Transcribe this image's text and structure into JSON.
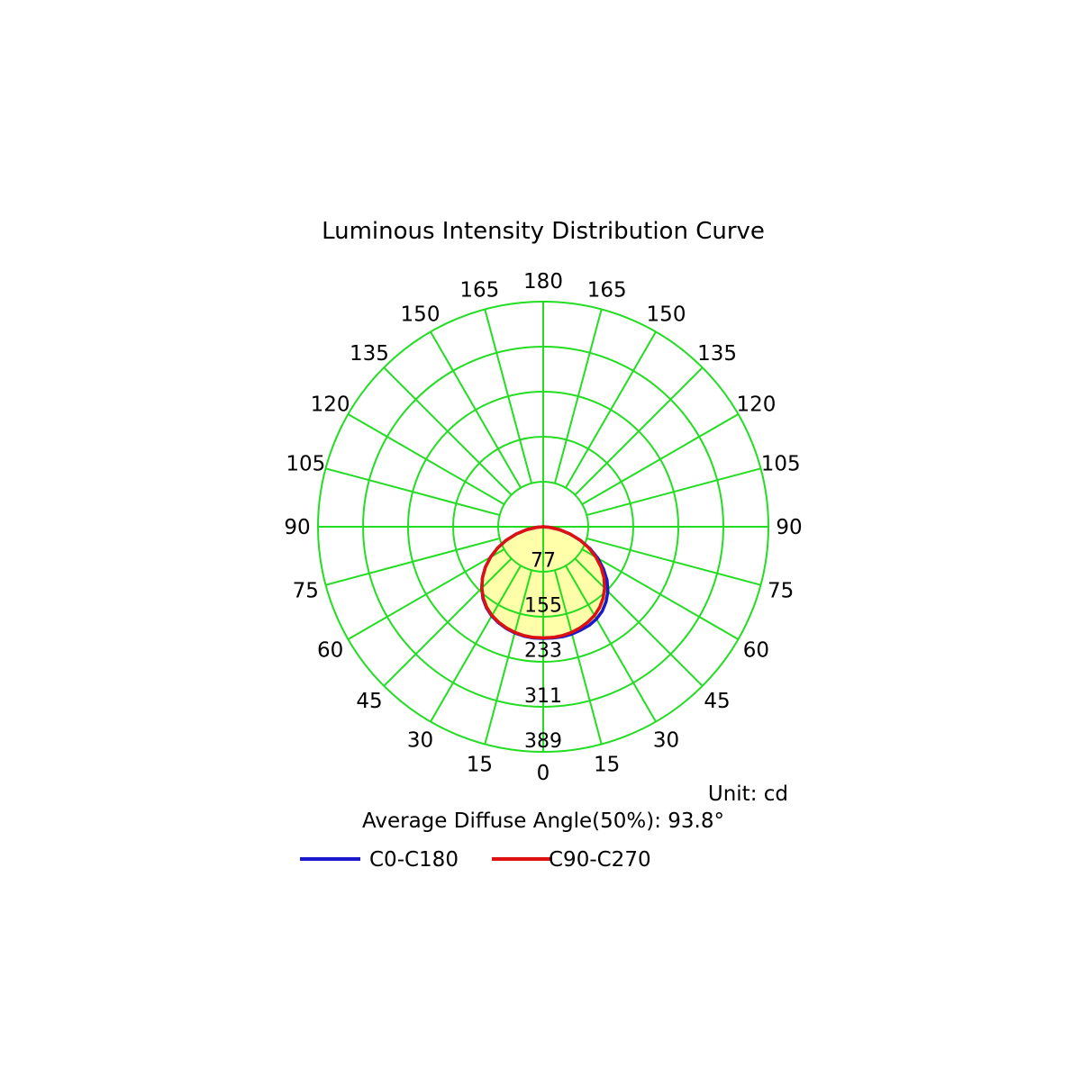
{
  "chart_data": {
    "type": "polar",
    "title": "Luminous Intensity Distribution Curve",
    "unit_label": "Unit: cd",
    "average_label": "Average Diffuse Angle(50%): 93.8°",
    "angle_ticks": {
      "left": [
        "180",
        "165",
        "150",
        "135",
        "120",
        "105",
        "90",
        "75",
        "60",
        "45",
        "30",
        "15",
        "0"
      ],
      "right": [
        "165",
        "150",
        "135",
        "120",
        "105",
        "90",
        "75",
        "60",
        "45",
        "30",
        "15"
      ]
    },
    "angle_values": [
      180,
      165,
      150,
      135,
      120,
      105,
      90,
      75,
      60,
      45,
      30,
      15,
      0
    ],
    "radial_ticks": [
      "77",
      "155",
      "233",
      "311",
      "389"
    ],
    "radial_values": [
      77,
      155,
      233,
      311,
      389
    ],
    "rmax": 389,
    "angles_deg": [
      0,
      5,
      10,
      15,
      20,
      25,
      30,
      35,
      40,
      45,
      50,
      55,
      60,
      65,
      70,
      75,
      80,
      85,
      90
    ],
    "series": [
      {
        "name": "C0-C180",
        "color": "#1a1acc",
        "left": [
          193,
          193,
          192,
          190,
          187,
          183,
          178,
          171,
          162,
          150,
          137,
          122,
          105,
          87,
          68,
          48,
          29,
          11,
          0
        ],
        "right": [
          193,
          193,
          193,
          192,
          190,
          188,
          184,
          178,
          169,
          158,
          144,
          127,
          109,
          89,
          68,
          47,
          28,
          10,
          0
        ]
      },
      {
        "name": "C90-C270",
        "color": "#dd1111",
        "left": [
          192,
          192,
          191,
          189,
          186,
          182,
          177,
          170,
          161,
          150,
          137,
          122,
          105,
          87,
          68,
          48,
          29,
          11,
          0
        ],
        "right": [
          192,
          192,
          191,
          189,
          186,
          182,
          177,
          170,
          161,
          150,
          137,
          122,
          105,
          87,
          68,
          48,
          29,
          11,
          0
        ]
      }
    ],
    "grid_color": "#22dd22",
    "fill_color": "#ffffaa"
  }
}
